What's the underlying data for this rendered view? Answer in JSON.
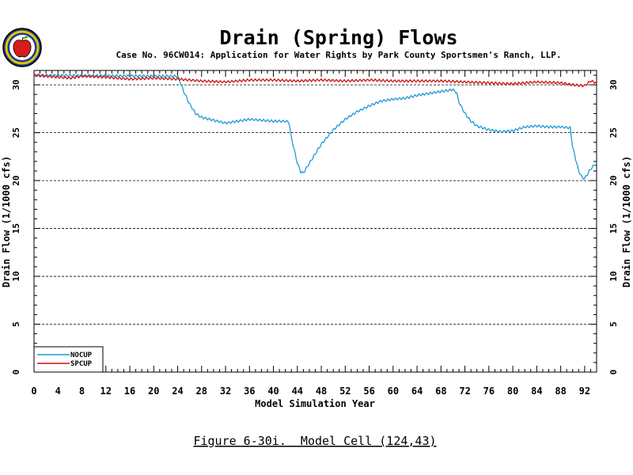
{
  "header": {
    "title": "Drain (Spring) Flows",
    "subtitle": "Case No. 96CW014: Application for Water Rights by Park County Sportsmen's Ranch, LLP."
  },
  "figure_caption": "Figure 6-30i.  Model Cell (124,43)",
  "colors": {
    "NOCUP": "#1f9ad6",
    "SPCUP": "#cc1111"
  },
  "chart_data": {
    "type": "line",
    "title": "Drain (Spring) Flows",
    "xlabel": "Model Simulation Year",
    "ylabel": "Drain Flow (1/1000 cfs)",
    "xlim": [
      0,
      94
    ],
    "ylim": [
      0,
      30
    ],
    "xticks": [
      0,
      4,
      8,
      12,
      16,
      20,
      24,
      28,
      32,
      36,
      40,
      44,
      48,
      52,
      56,
      60,
      64,
      68,
      72,
      76,
      80,
      84,
      88,
      92
    ],
    "yticks": [
      0,
      5,
      10,
      15,
      20,
      25,
      30
    ],
    "grid": "horizontal dashed",
    "legend_position": "bottom-left",
    "series": [
      {
        "name": "NOCUP",
        "x": [
          0,
          24,
          24.3,
          25,
          26,
          27,
          28,
          30,
          32,
          34,
          36,
          38,
          40,
          42,
          42.6,
          43,
          44,
          44.6,
          45,
          46,
          47,
          48,
          50,
          52,
          54,
          56,
          58,
          60,
          62,
          64,
          66,
          68,
          70,
          70.6,
          71,
          72,
          73,
          74,
          76,
          78,
          80,
          82,
          84,
          86,
          88,
          89.6,
          90,
          91,
          91.6,
          92,
          92.6,
          93,
          93.6,
          94
        ],
        "y": [
          31,
          30.9,
          30.5,
          29.3,
          28,
          27,
          26.6,
          26.3,
          26.0,
          26.2,
          26.4,
          26.3,
          26.2,
          26.2,
          26.1,
          24.5,
          21.8,
          20.9,
          20.8,
          21.8,
          22.8,
          23.8,
          25.3,
          26.4,
          27.2,
          27.8,
          28.3,
          28.5,
          28.6,
          28.9,
          29.1,
          29.3,
          29.5,
          29.2,
          28.2,
          27.0,
          26.2,
          25.7,
          25.3,
          25.1,
          25.2,
          25.6,
          25.7,
          25.6,
          25.6,
          25.5,
          23.5,
          21.0,
          20.3,
          20.2,
          20.8,
          21.2,
          21.6,
          21.8
        ]
      },
      {
        "name": "SPCUP",
        "x": [
          0,
          2,
          4,
          6,
          8,
          12,
          16,
          20,
          24,
          28,
          32,
          36,
          40,
          44,
          48,
          52,
          56,
          60,
          64,
          68,
          72,
          76,
          80,
          84,
          88,
          90,
          92,
          93,
          94
        ],
        "y": [
          31.0,
          30.9,
          30.8,
          30.7,
          30.9,
          30.8,
          30.6,
          30.7,
          30.6,
          30.4,
          30.3,
          30.5,
          30.5,
          30.4,
          30.5,
          30.4,
          30.5,
          30.4,
          30.4,
          30.4,
          30.3,
          30.2,
          30.1,
          30.3,
          30.2,
          30.0,
          29.9,
          30.4,
          30.2
        ]
      }
    ]
  }
}
